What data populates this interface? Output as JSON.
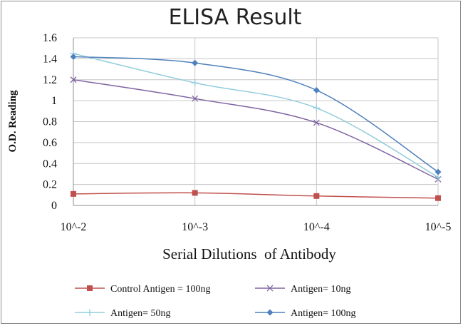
{
  "chart_data": {
    "type": "line",
    "title": "ELISA Result",
    "xlabel": "Serial Dilutions  of Antibody",
    "ylabel": "O.D. Reading",
    "categories": [
      "10^-2",
      "10^-3",
      "10^-4",
      "10^-5"
    ],
    "ylim": [
      0,
      1.6
    ],
    "yticks": [
      "0",
      "0.2",
      "0.4",
      "0.6",
      "0.8",
      "1",
      "1.2",
      "1.4",
      "1.6"
    ],
    "grid": true,
    "legend_position": "bottom",
    "series": [
      {
        "name": "Control Antigen = 100ng",
        "values": [
          0.11,
          0.12,
          0.09,
          0.07
        ],
        "color": "#C0504D",
        "marker": "square"
      },
      {
        "name": "Antigen= 10ng",
        "values": [
          1.2,
          1.02,
          0.79,
          0.25
        ],
        "color": "#8064A2",
        "marker": "x"
      },
      {
        "name": "Antigen= 50ng",
        "values": [
          1.45,
          1.17,
          0.93,
          0.27
        ],
        "color": "#93CDDD",
        "marker": "plus"
      },
      {
        "name": "Antigen= 100ng",
        "values": [
          1.42,
          1.36,
          1.1,
          0.32
        ],
        "color": "#4F81BD",
        "marker": "diamond"
      }
    ]
  }
}
